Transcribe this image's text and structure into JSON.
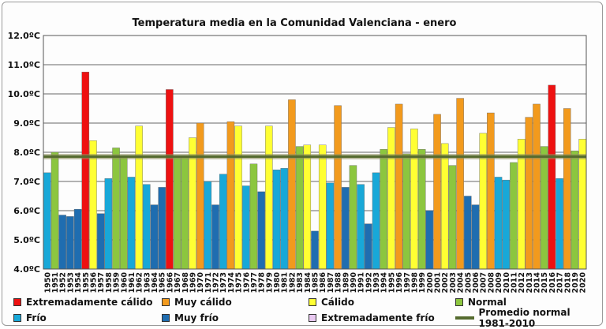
{
  "chart_data": {
    "type": "bar",
    "title": "Temperatura media en la Comunidad Valenciana - enero",
    "y_ticks": [
      "4.0ºC",
      "5.0ºC",
      "6.0ºC",
      "7.0ºC",
      "8.0ºC",
      "9.0ºC",
      "10.0ºC",
      "11.0ºC",
      "12.0ºC"
    ],
    "ylim": [
      4.0,
      12.0
    ],
    "grid": true,
    "reference_line": {
      "name": "Promedio normal 1981-2010",
      "value": 7.85,
      "color": "#556b2f"
    },
    "classes": [
      {
        "key": "ext_calido",
        "name": "Extremadamente cálido",
        "color": "#ee1111"
      },
      {
        "key": "muy_calido",
        "name": "Muy cálido",
        "color": "#f29a1d"
      },
      {
        "key": "calido",
        "name": "Cálido",
        "color": "#ffff33"
      },
      {
        "key": "normal",
        "name": "Normal",
        "color": "#8cc63f"
      },
      {
        "key": "frio",
        "name": "Frío",
        "color": "#18a8d8"
      },
      {
        "key": "muy_frio",
        "name": "Muy frío",
        "color": "#1f6db0"
      },
      {
        "key": "ext_frio",
        "name": "Extremadamente frío",
        "color": "#e8c8f0"
      }
    ],
    "categories": [
      "1950",
      "1951",
      "1952",
      "1953",
      "1954",
      "1955",
      "1956",
      "1957",
      "1958",
      "1959",
      "1960",
      "1961",
      "1962",
      "1963",
      "1964",
      "1965",
      "1966",
      "1967",
      "1968",
      "1969",
      "1970",
      "1971",
      "1972",
      "1973",
      "1974",
      "1975",
      "1976",
      "1977",
      "1978",
      "1979",
      "1980",
      "1981",
      "1982",
      "1983",
      "1984",
      "1985",
      "1986",
      "1987",
      "1988",
      "1989",
      "1990",
      "1991",
      "1992",
      "1993",
      "1994",
      "1995",
      "1996",
      "1997",
      "1998",
      "1999",
      "2000",
      "2001",
      "2002",
      "2003",
      "2004",
      "2005",
      "2006",
      "2007",
      "2008",
      "2009",
      "2010",
      "2011",
      "2012",
      "2013",
      "2014",
      "2015",
      "2016",
      "2017",
      "2018",
      "2019",
      "2020"
    ],
    "values": [
      7.3,
      8.0,
      5.85,
      5.8,
      6.05,
      10.75,
      8.4,
      5.9,
      7.1,
      8.15,
      7.85,
      7.15,
      8.9,
      6.9,
      6.2,
      6.8,
      10.15,
      7.85,
      7.85,
      8.5,
      9.0,
      7.0,
      6.2,
      7.25,
      9.05,
      8.9,
      6.85,
      7.6,
      6.65,
      8.9,
      7.4,
      7.45,
      9.8,
      8.2,
      8.25,
      5.3,
      8.25,
      6.95,
      9.6,
      6.8,
      7.55,
      6.9,
      5.55,
      7.3,
      8.1,
      8.85,
      9.65,
      7.95,
      8.8,
      8.1,
      6.0,
      9.3,
      8.3,
      7.55,
      9.85,
      6.5,
      6.2,
      8.65,
      9.35,
      7.15,
      7.05,
      7.65,
      8.45,
      9.2,
      9.65,
      8.2,
      10.3,
      7.1,
      9.5,
      8.05,
      8.45
    ],
    "bar_classes": [
      "frio",
      "normal",
      "muy_frio",
      "muy_frio",
      "muy_frio",
      "ext_calido",
      "calido",
      "muy_frio",
      "frio",
      "normal",
      "normal",
      "frio",
      "calido",
      "frio",
      "muy_frio",
      "muy_frio",
      "ext_calido",
      "normal",
      "normal",
      "calido",
      "muy_calido",
      "frio",
      "muy_frio",
      "frio",
      "muy_calido",
      "calido",
      "frio",
      "normal",
      "muy_frio",
      "calido",
      "frio",
      "frio",
      "muy_calido",
      "normal",
      "calido",
      "muy_frio",
      "calido",
      "frio",
      "muy_calido",
      "muy_frio",
      "normal",
      "frio",
      "muy_frio",
      "frio",
      "normal",
      "calido",
      "muy_calido",
      "normal",
      "calido",
      "normal",
      "muy_frio",
      "muy_calido",
      "calido",
      "normal",
      "muy_calido",
      "muy_frio",
      "muy_frio",
      "calido",
      "muy_calido",
      "frio",
      "frio",
      "normal",
      "calido",
      "muy_calido",
      "muy_calido",
      "normal",
      "ext_calido",
      "frio",
      "muy_calido",
      "normal",
      "calido"
    ]
  }
}
